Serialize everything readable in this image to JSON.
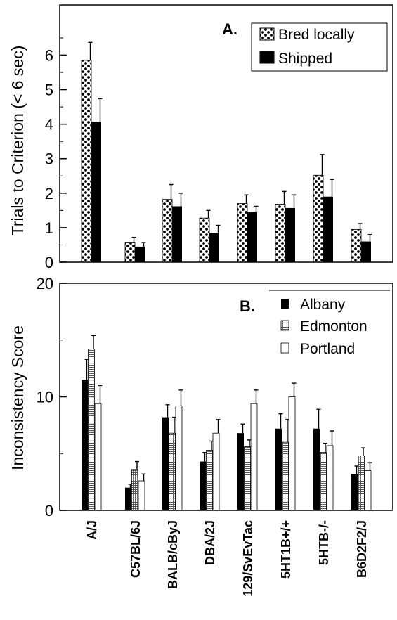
{
  "chart_data": [
    {
      "type": "bar",
      "panel_label": "A.",
      "ylabel": "Trials to Criterion (< 6 sec)",
      "ylim": [
        0,
        6.6
      ],
      "yticks": [
        "0",
        "1",
        "2",
        "3",
        "4",
        "5",
        "6"
      ],
      "legend_position": "top-right",
      "categories": [
        "A/J",
        "C57BL/6J",
        "BALB/cByJ",
        "DBA/2J",
        "129/SvEvTac",
        "5HT1B+/+",
        "5HTB-/-",
        "B6D2F2/J"
      ],
      "series": [
        {
          "name": "Bred locally",
          "pattern": "dots",
          "values": [
            5.85,
            0.58,
            1.82,
            1.28,
            1.7,
            1.68,
            2.52,
            0.95
          ],
          "errors": [
            0.52,
            0.14,
            0.43,
            0.22,
            0.25,
            0.37,
            0.6,
            0.17
          ]
        },
        {
          "name": "Shipped",
          "pattern": "solid",
          "values": [
            4.07,
            0.45,
            1.62,
            0.85,
            1.45,
            1.57,
            1.9,
            0.6
          ],
          "errors": [
            0.67,
            0.12,
            0.38,
            0.22,
            0.17,
            0.38,
            0.5,
            0.2
          ]
        }
      ]
    },
    {
      "type": "bar",
      "panel_label": "B.",
      "ylabel": "Inconsistency Score",
      "ylim": [
        0,
        20
      ],
      "yticks": [
        "0",
        "10",
        "20"
      ],
      "legend_position": "top-right",
      "categories": [
        "A/J",
        "C57BL/6J",
        "BALB/cByJ",
        "DBA/2J",
        "129/SvEvTac",
        "5HT1B+/+",
        "5HTB-/-",
        "B6D2F2/J"
      ],
      "series": [
        {
          "name": "Albany",
          "pattern": "solid",
          "values": [
            11.5,
            2.0,
            8.2,
            4.3,
            6.8,
            7.2,
            7.2,
            3.2
          ],
          "errors": [
            1.8,
            0.3,
            1.1,
            0.8,
            0.8,
            1.3,
            1.7,
            0.7
          ]
        },
        {
          "name": "Edmonton",
          "pattern": "grid",
          "values": [
            14.2,
            3.6,
            6.8,
            5.3,
            5.6,
            6.0,
            5.1,
            4.8
          ],
          "errors": [
            1.2,
            0.7,
            1.4,
            0.8,
            0.6,
            2.0,
            0.8,
            0.7
          ]
        },
        {
          "name": "Portland",
          "pattern": "open",
          "values": [
            9.4,
            2.6,
            9.2,
            6.8,
            9.4,
            10.0,
            5.7,
            3.5
          ],
          "errors": [
            1.6,
            0.6,
            1.4,
            1.2,
            1.2,
            1.2,
            1.3,
            0.7
          ]
        }
      ]
    }
  ]
}
